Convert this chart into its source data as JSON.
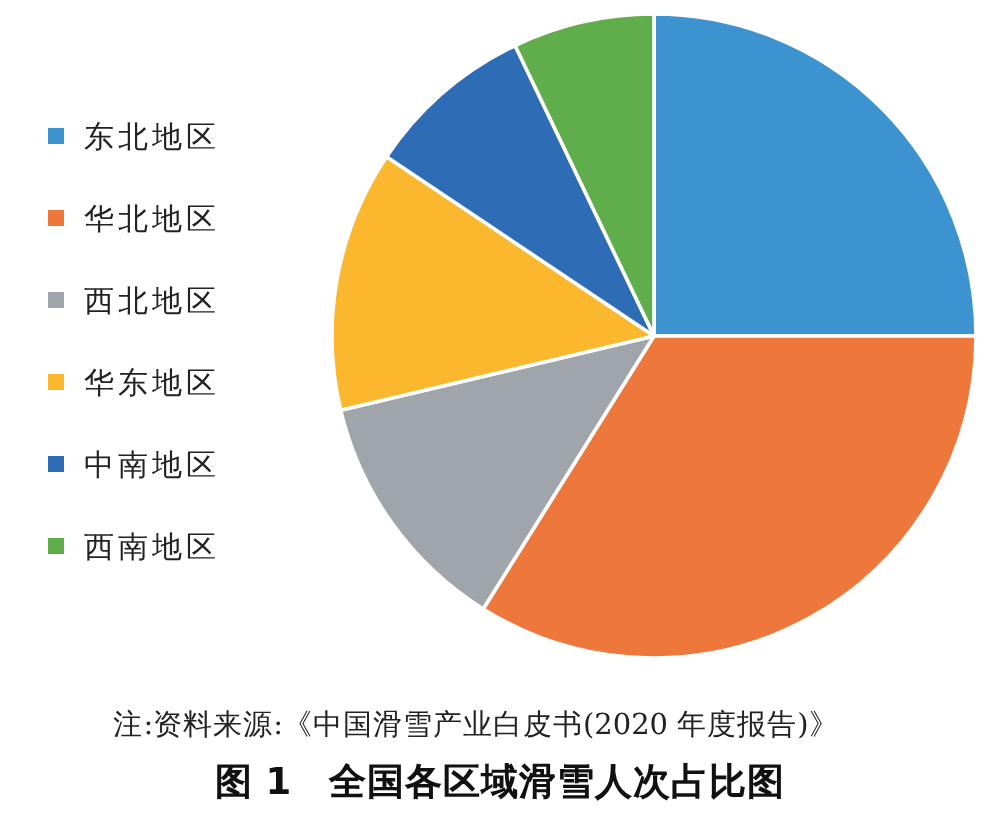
{
  "chart_data": {
    "type": "pie",
    "title": "图 1　全国各区域滑雪人次占比图",
    "annotations": [
      "注:资料来源:《中国滑雪产业白皮书(2020 年度报告)》"
    ],
    "categories": [
      "东北地区",
      "华北地区",
      "西北地区",
      "华东地区",
      "中南地区",
      "西南地区"
    ],
    "values": [
      25.0,
      33.9,
      12.4,
      13.1,
      8.5,
      7.1
    ],
    "colors": [
      "#3d92d0",
      "#ee783c",
      "#a0a4ab",
      "#fbb82f",
      "#2e6db5",
      "#5fad4b"
    ],
    "legend": "left"
  }
}
